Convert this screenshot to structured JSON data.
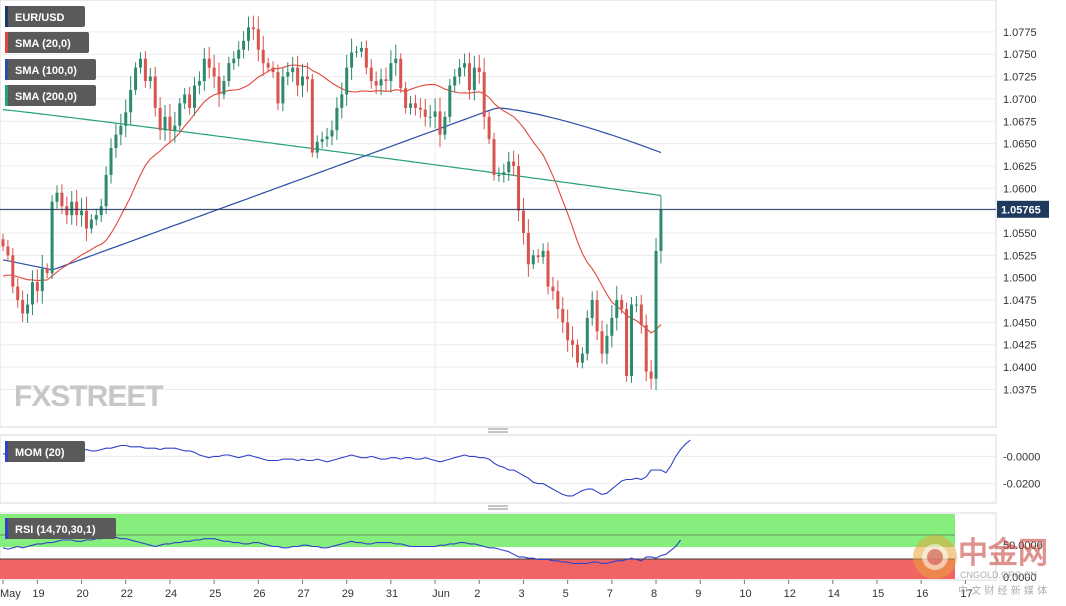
{
  "colors": {
    "up": "#2d8a6e",
    "down": "#d9534f",
    "sma20": "#e0483a",
    "sma100": "#2b4fa6",
    "sma200": "#27a07d",
    "mom": "#2f42c8",
    "rsi": "#2f42c8",
    "price_line": "#1f3a5f",
    "tag_bg": "#1f3a5f",
    "legend_bg": "#5a5a5a",
    "rsi_green": "#86ee7c",
    "rsi_red": "#f26464"
  },
  "legend": {
    "pair": "EUR/USD",
    "sma20": "SMA (20,0)",
    "sma100": "SMA (100,0)",
    "sma200": "SMA (200,0)",
    "mom": "MOM (20)",
    "rsi": "RSI (14,70,30,1)"
  },
  "logo": "FXSTREET",
  "watermark": {
    "title": "中金网",
    "sub": "中 文 财 经 新 媒 体",
    "url": "CNGOLD.ORG.CN"
  },
  "chart_data": {
    "type": "candlestick",
    "timeframe": "hourly",
    "current_price": 1.05765,
    "current_price_label": "1.05765",
    "main_ylim": [
      1.0352,
      1.0795
    ],
    "main_yticks": [
      "1.0775",
      "1.0750",
      "1.0725",
      "1.0700",
      "1.0675",
      "1.0650",
      "1.0625",
      "1.0600",
      "1.0575",
      "1.0550",
      "1.0525",
      "1.0500",
      "1.0475",
      "1.0450",
      "1.0425",
      "1.0400",
      "1.0375"
    ],
    "mom_ylim": [
      -0.032,
      0.012
    ],
    "mom_yticks": [
      "-0.0000",
      "-0.0200"
    ],
    "rsi_yticks": [
      "50.0000",
      "0.0000"
    ],
    "x_ticks": [
      {
        "label": "May",
        "i": 0
      },
      {
        "label": "19",
        "i": 7
      },
      {
        "label": "20",
        "i": 16
      },
      {
        "label": "22",
        "i": 25
      },
      {
        "label": "24",
        "i": 34
      },
      {
        "label": "25",
        "i": 43
      },
      {
        "label": "26",
        "i": 52
      },
      {
        "label": "27",
        "i": 61
      },
      {
        "label": "29",
        "i": 70
      },
      {
        "label": "31",
        "i": 79
      },
      {
        "label": "Jun",
        "i": 88
      },
      {
        "label": "2",
        "i": 97
      },
      {
        "label": "3",
        "i": 106
      },
      {
        "label": "5",
        "i": 115
      },
      {
        "label": "7",
        "i": 124
      },
      {
        "label": "8",
        "i": 133
      },
      {
        "label": "9",
        "i": 142
      },
      {
        "label": "10",
        "i": 151
      },
      {
        "label": "12",
        "i": 160
      },
      {
        "label": "14",
        "i": 169
      },
      {
        "label": "15",
        "i": 178
      },
      {
        "label": "16",
        "i": 187
      },
      {
        "label": "17",
        "i": 196
      }
    ],
    "close": [
      1.0535,
      1.0525,
      1.049,
      1.0475,
      1.046,
      1.047,
      1.0495,
      1.0485,
      1.051,
      1.0505,
      1.0585,
      1.0595,
      1.058,
      1.057,
      1.0585,
      1.057,
      1.0575,
      1.0555,
      1.0565,
      1.057,
      1.058,
      1.0615,
      1.0645,
      1.066,
      1.067,
      1.0685,
      1.071,
      1.0735,
      1.0745,
      1.072,
      1.0725,
      1.069,
      1.0665,
      1.068,
      1.0665,
      1.067,
      1.0695,
      1.0705,
      1.069,
      1.0715,
      1.072,
      1.0745,
      1.0735,
      1.0725,
      1.0705,
      1.072,
      1.074,
      1.0745,
      1.0755,
      1.0765,
      1.078,
      1.0778,
      1.0755,
      1.074,
      1.0735,
      1.073,
      1.0695,
      1.0725,
      1.073,
      1.0735,
      1.0715,
      1.0725,
      1.0722,
      1.064,
      1.0652,
      1.0655,
      1.0658,
      1.0665,
      1.069,
      1.0705,
      1.0735,
      1.0752,
      1.0753,
      1.0757,
      1.0735,
      1.072,
      1.0715,
      1.0722,
      1.072,
      1.074,
      1.0745,
      1.0712,
      1.069,
      1.0695,
      1.069,
      1.0688,
      1.068,
      1.068,
      1.0686,
      1.066,
      1.068,
      1.0715,
      1.0725,
      1.0735,
      1.074,
      1.071,
      1.0735,
      1.073,
      1.068,
      1.0655,
      1.0615,
      1.0615,
      1.0618,
      1.063,
      1.0625,
      1.0575,
      1.055,
      1.0515,
      1.0525,
      1.0523,
      1.053,
      1.049,
      1.0485,
      1.0465,
      1.045,
      1.043,
      1.0425,
      1.0405,
      1.0415,
      1.0455,
      1.0475,
      1.044,
      1.0415,
      1.0435,
      1.0455,
      1.0475,
      1.0465,
      1.039,
      1.047,
      1.047,
      1.0447,
      1.0395,
      1.0387,
      1.053,
      1.0576
    ],
    "mom": [
      0.002,
      0.001,
      -0.001,
      0.0,
      -0.001,
      0.0,
      0.001,
      0.001,
      0.002,
      0.003,
      0.005,
      0.005,
      0.006,
      0.005,
      0.005,
      0.004,
      0.004,
      0.005,
      0.004,
      0.004,
      0.005,
      0.006,
      0.006,
      0.007,
      0.008,
      0.008,
      0.007,
      0.007,
      0.007,
      0.006,
      0.006,
      0.006,
      0.005,
      0.006,
      0.006,
      0.006,
      0.005,
      0.004,
      0.004,
      0.003,
      0.001,
      0.0,
      -0.001,
      0.0,
      0.0,
      0.001,
      0.001,
      0.0,
      -0.001,
      0.0,
      0.001,
      0.0,
      -0.001,
      -0.002,
      -0.003,
      -0.003,
      -0.003,
      -0.002,
      -0.002,
      -0.002,
      -0.003,
      -0.002,
      -0.003,
      -0.003,
      -0.002,
      -0.003,
      -0.004,
      -0.003,
      -0.002,
      -0.001,
      0.0,
      0.001,
      0.0,
      -0.001,
      -0.001,
      0.0,
      -0.001,
      -0.002,
      -0.002,
      -0.001,
      -0.001,
      -0.002,
      -0.001,
      -0.001,
      -0.002,
      -0.002,
      -0.001,
      -0.002,
      -0.003,
      -0.004,
      -0.003,
      -0.002,
      -0.001,
      0.0,
      0.001,
      0.0,
      0.0,
      -0.001,
      -0.001,
      -0.002,
      -0.005,
      -0.007,
      -0.008,
      -0.01,
      -0.01,
      -0.012,
      -0.014,
      -0.016,
      -0.019,
      -0.02,
      -0.02,
      -0.022,
      -0.024,
      -0.026,
      -0.028,
      -0.029,
      -0.029,
      -0.027,
      -0.025,
      -0.024,
      -0.024,
      -0.026,
      -0.028,
      -0.027,
      -0.024,
      -0.021,
      -0.018,
      -0.017,
      -0.017,
      -0.016,
      -0.017,
      -0.015,
      -0.01,
      -0.01,
      -0.01,
      -0.012,
      -0.007,
      0.0,
      0.005,
      0.009,
      0.012
    ],
    "rsi": [
      54,
      53,
      54,
      55,
      54,
      55,
      56,
      57,
      57,
      58,
      58,
      59,
      60,
      60,
      60,
      59,
      59,
      60,
      60,
      61,
      61,
      62,
      62,
      62,
      61,
      61,
      60,
      59,
      58,
      57,
      56,
      55,
      56,
      57,
      57,
      58,
      58,
      59,
      59,
      60,
      60,
      61,
      61,
      61,
      60,
      59,
      59,
      58,
      58,
      57,
      57,
      58,
      58,
      57,
      56,
      55,
      55,
      54,
      54,
      55,
      55,
      56,
      56,
      55,
      55,
      54,
      54,
      55,
      56,
      57,
      58,
      59,
      58,
      58,
      57,
      57,
      58,
      58,
      58,
      58,
      57,
      57,
      56,
      55,
      55,
      55,
      55,
      55,
      55,
      56,
      56,
      57,
      57,
      58,
      58,
      57,
      57,
      56,
      55,
      54,
      54,
      53,
      52,
      51,
      49,
      47,
      47,
      46,
      46,
      45,
      45,
      45,
      44,
      44,
      43,
      43,
      42,
      42,
      42,
      42,
      43,
      43,
      42,
      42,
      43,
      44,
      44,
      45,
      46,
      45,
      44,
      47,
      47,
      46,
      48,
      49,
      52,
      55,
      60
    ]
  }
}
